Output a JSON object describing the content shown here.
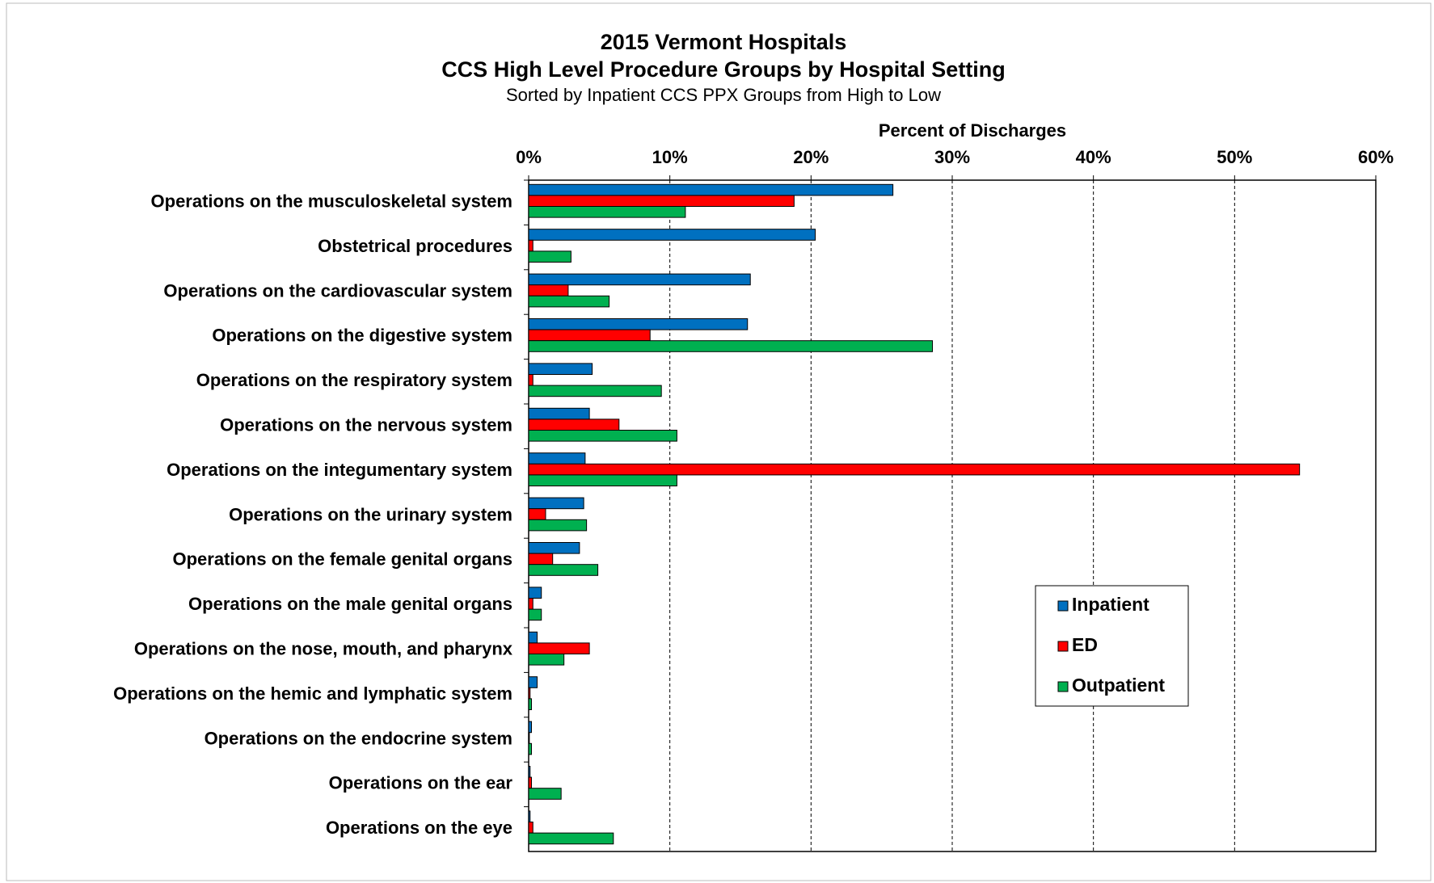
{
  "chart_data": {
    "type": "hbar",
    "title": "2015 Vermont Hospitals",
    "title_line2": "CCS High Level Procedure Groups by Hospital Setting",
    "subtitle": "Sorted by Inpatient CCS PPX Groups from High to Low",
    "x_axis_label": "Percent of Discharges",
    "categories": [
      "Operations on the musculoskeletal system",
      "Obstetrical procedures",
      "Operations on the cardiovascular system",
      "Operations on the digestive system",
      "Operations on the respiratory system",
      "Operations on the nervous system",
      "Operations on the integumentary system",
      "Operations on the urinary system",
      "Operations on the female genital organs",
      "Operations on the male genital organs",
      "Operations on the nose, mouth, and pharynx",
      "Operations on the hemic and lymphatic system",
      "Operations on the endocrine system",
      "Operations on the ear",
      "Operations on the eye"
    ],
    "series": [
      {
        "name": "Inpatient",
        "color": "#0070c0",
        "values": [
          25.8,
          20.3,
          15.7,
          15.5,
          4.5,
          4.3,
          4.0,
          3.9,
          3.6,
          0.9,
          0.6,
          0.6,
          0.2,
          0.1,
          0.1
        ]
      },
      {
        "name": "ED",
        "color": "#ff0000",
        "values": [
          18.8,
          0.3,
          2.8,
          8.6,
          0.3,
          6.4,
          54.6,
          1.2,
          1.7,
          0.3,
          4.3,
          0.1,
          0.05,
          0.2,
          0.3
        ]
      },
      {
        "name": "Outpatient",
        "color": "#00b050",
        "values": [
          11.1,
          3.0,
          5.7,
          28.6,
          9.4,
          10.5,
          10.5,
          4.1,
          4.9,
          0.9,
          2.5,
          0.2,
          0.2,
          2.3,
          6.0
        ]
      }
    ],
    "xlim": [
      0,
      60
    ],
    "xticks": [
      {
        "value": 0,
        "label": "0%"
      },
      {
        "value": 10,
        "label": "10%"
      },
      {
        "value": 20,
        "label": "20%"
      },
      {
        "value": 30,
        "label": "30%"
      },
      {
        "value": 40,
        "label": "40%"
      },
      {
        "value": 50,
        "label": "50%"
      },
      {
        "value": 60,
        "label": "60%"
      }
    ],
    "grid": true,
    "legend": "right"
  }
}
